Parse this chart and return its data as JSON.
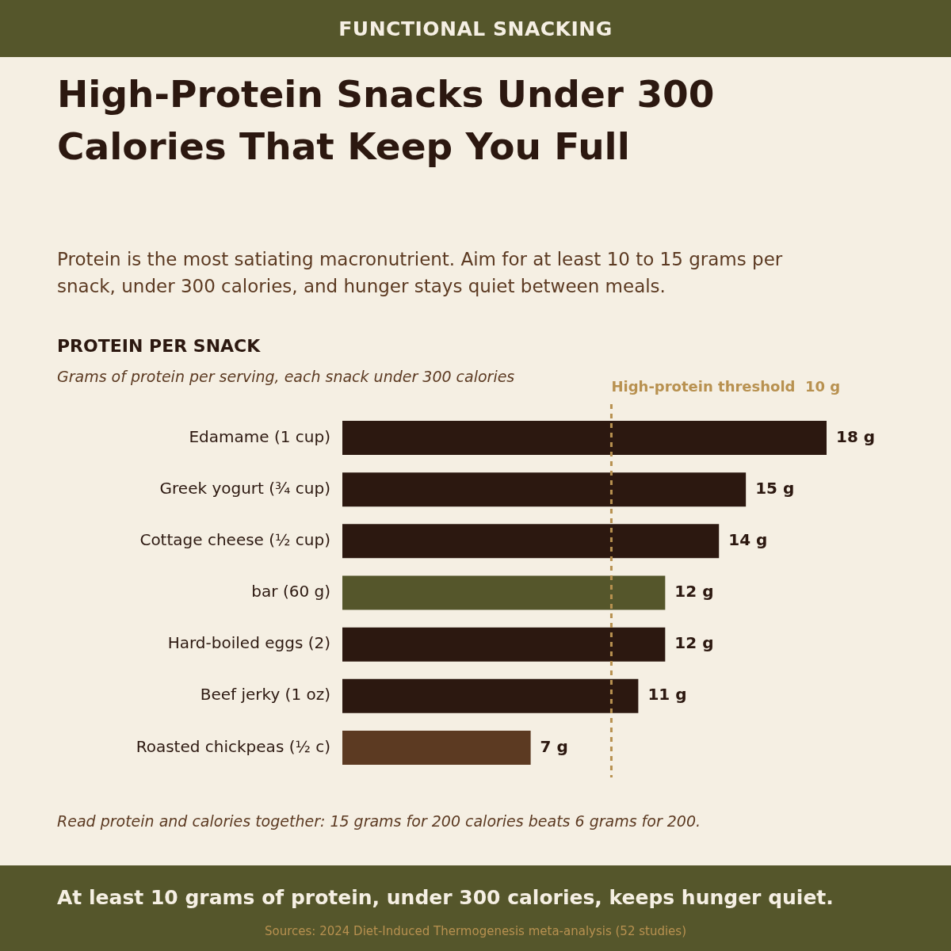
{
  "chart_data": {
    "type": "bar",
    "orientation": "horizontal",
    "title": "High-Protein Snacks Under 300 Calories That Keep You Full",
    "subtitle": "Protein is the most satiating macronutrient. Aim for at least 10 to 15 grams per snack, under 300 calories, and hunger stays quiet between meals.",
    "categories": [
      "Edamame (1 cup)",
      "Greek yogurt (¾ cup)",
      "Cottage cheese (½ cup)",
      "bar (60 g)",
      "Hard-boiled eggs (2)",
      "Beef jerky (1 oz)",
      "Roasted chickpeas (½ c)"
    ],
    "values": [
      18,
      15,
      14,
      12,
      12,
      11,
      7
    ],
    "colors": [
      "#2c1810",
      "#2c1810",
      "#2c1810",
      "#55562b",
      "#2c1810",
      "#2c1810",
      "#5c3a22"
    ],
    "value_labels": [
      "18 g",
      "15 g",
      "14 g",
      "12 g",
      "12 g",
      "11 g",
      "7 g"
    ],
    "ref_lines": [
      {
        "axis": "x",
        "value": 10,
        "label": "High-protein threshold  10 g",
        "color": "#b89150",
        "line_style": "dashed"
      }
    ],
    "annotations": [
      "FUNCTIONAL SNACKING",
      "PROTEIN PER SNACK",
      "Grams of protein per serving, each snack under 300 calories",
      "Read protein and calories together: 15 grams for 200 calories beats 6 grams for 200.",
      "At least 10 grams of protein, under 300 calories, keeps hunger quiet.",
      "Sources: 2024 Diet-Induced Thermogenesis meta-analysis (52 studies)"
    ],
    "legend": false
  }
}
